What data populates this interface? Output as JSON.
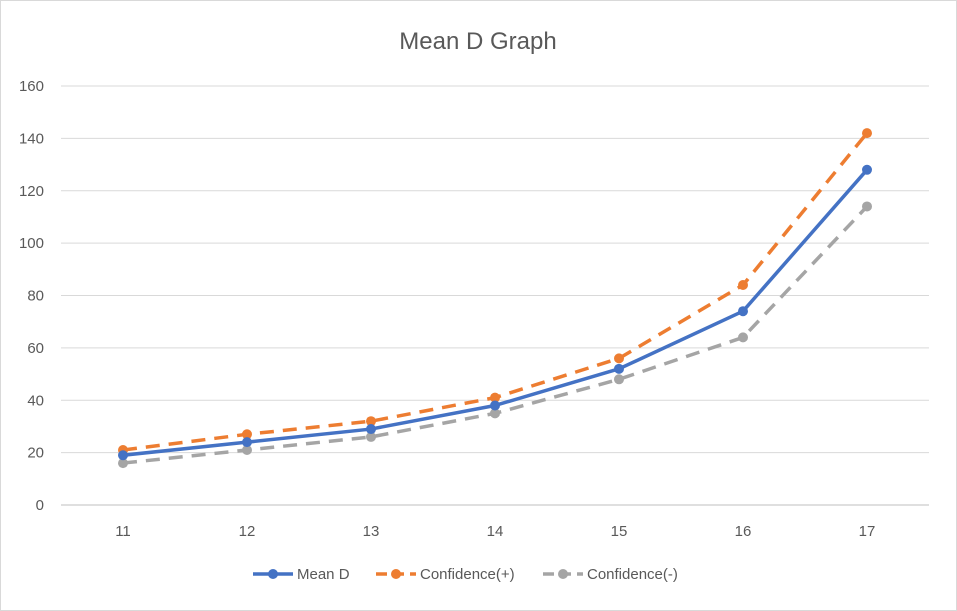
{
  "chart_data": {
    "type": "line",
    "title": "Mean D Graph",
    "xlabel": "",
    "ylabel": "",
    "categories": [
      "11",
      "12",
      "13",
      "14",
      "15",
      "16",
      "17"
    ],
    "ylim": [
      0,
      160
    ],
    "yticks": [
      "0",
      "20",
      "40",
      "60",
      "80",
      "100",
      "120",
      "140",
      "160"
    ],
    "grid": true,
    "legend_position": "bottom",
    "series": [
      {
        "name": "Mean D",
        "values": [
          19,
          24,
          29,
          38,
          52,
          74,
          128
        ],
        "color": "#4472C4",
        "dash": "solid"
      },
      {
        "name": "Confidence(+)",
        "values": [
          21,
          27,
          32,
          41,
          56,
          84,
          142
        ],
        "color": "#ED7D31",
        "dash": "dashed"
      },
      {
        "name": "Confidence(-)",
        "values": [
          16,
          21,
          26,
          35,
          48,
          64,
          114
        ],
        "color": "#A5A5A5",
        "dash": "dashed"
      }
    ]
  }
}
